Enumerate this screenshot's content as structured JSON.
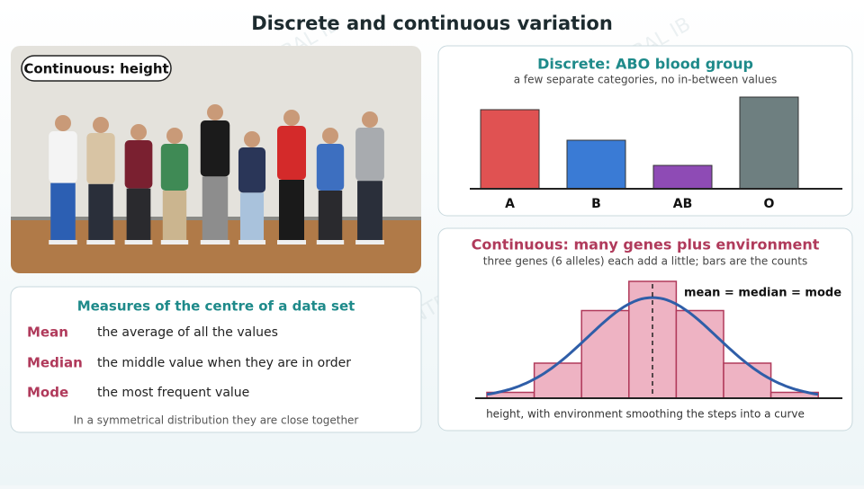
{
  "title": "Discrete and continuous variation",
  "watermark": "BIOCENTRAL IB",
  "photo": {
    "label": "Continuous: height"
  },
  "measures": {
    "title": "Measures of the centre of a data set",
    "rows": [
      [
        "Mean",
        "the average of all the values"
      ],
      [
        "Median",
        "the middle value when they are in order"
      ],
      [
        "Mode",
        "the most frequent value"
      ]
    ],
    "note": "In a symmetrical distribution they are close together"
  },
  "chart_data": [
    {
      "type": "bar",
      "title": "Discrete: ABO blood group",
      "subtitle": "a few separate categories, no in-between values",
      "categories": [
        "A",
        "B",
        "AB",
        "O"
      ],
      "values": [
        88,
        54,
        26,
        102
      ],
      "colors": [
        "#e05252",
        "#3a7bd5",
        "#8e4bb5",
        "#6e7f80"
      ],
      "ylim": [
        0,
        110
      ]
    },
    {
      "type": "histogram",
      "title": "Continuous: many genes plus environment",
      "subtitle": "three genes (6 alleles) each add a little; bars are the counts",
      "categories": [
        null,
        null,
        null,
        null,
        null,
        null,
        null
      ],
      "values": [
        1,
        6,
        15,
        20,
        15,
        6,
        1
      ],
      "color": "#eeb3c3",
      "ylim": [
        0,
        20
      ],
      "annotation": "mean = median = mode",
      "xlabel": "height, with environment smoothing the steps into a curve"
    }
  ]
}
